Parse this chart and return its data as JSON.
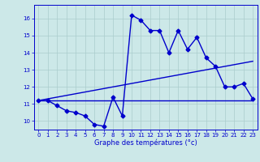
{
  "xlabel": "Graphe des températures (°c)",
  "bg_color": "#cce8e8",
  "grid_color": "#aacccc",
  "line_color": "#0000cc",
  "xlim": [
    -0.5,
    23.5
  ],
  "ylim": [
    9.5,
    16.8
  ],
  "xticks": [
    0,
    1,
    2,
    3,
    4,
    5,
    6,
    7,
    8,
    9,
    10,
    11,
    12,
    13,
    14,
    15,
    16,
    17,
    18,
    19,
    20,
    21,
    22,
    23
  ],
  "yticks": [
    10,
    11,
    12,
    13,
    14,
    15,
    16
  ],
  "line1_x": [
    0,
    1,
    2,
    3,
    4,
    5,
    6,
    7,
    8,
    9,
    10,
    11,
    12,
    13,
    14,
    15,
    16,
    17,
    18,
    19,
    20,
    21,
    22,
    23
  ],
  "line1_y": [
    11.2,
    11.2,
    10.9,
    10.6,
    10.5,
    10.3,
    9.8,
    9.7,
    11.4,
    10.3,
    16.2,
    15.9,
    15.3,
    15.3,
    14.0,
    15.3,
    14.2,
    14.9,
    13.7,
    13.2,
    12.0,
    12.0,
    12.2,
    11.3
  ],
  "line2_x": [
    0,
    23
  ],
  "line2_y": [
    11.2,
    13.5
  ],
  "line3_x": [
    0,
    23
  ],
  "line3_y": [
    11.2,
    11.2
  ],
  "marker": "D",
  "markersize": 2.5,
  "linewidth": 1.0,
  "tick_fontsize": 5.0,
  "xlabel_fontsize": 6.0
}
